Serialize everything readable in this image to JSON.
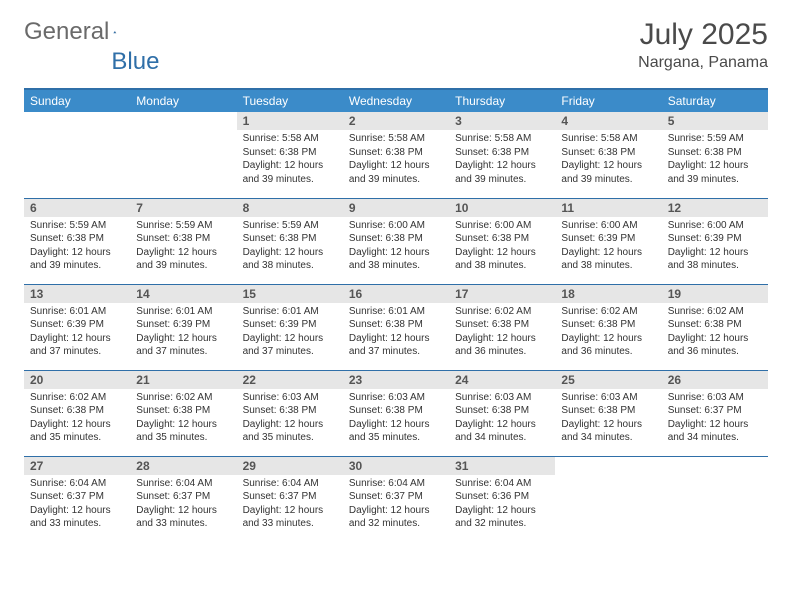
{
  "logo": {
    "text_gray": "General",
    "text_blue": "Blue"
  },
  "title": "July 2025",
  "location": "Nargana, Panama",
  "colors": {
    "header_bg": "#3b8bc9",
    "border": "#2f6fa8",
    "daynum_bg": "#e6e6e6",
    "text": "#333333",
    "title": "#4a4a4a"
  },
  "day_headers": [
    "Sunday",
    "Monday",
    "Tuesday",
    "Wednesday",
    "Thursday",
    "Friday",
    "Saturday"
  ],
  "weeks": [
    [
      {
        "empty": true
      },
      {
        "empty": true
      },
      {
        "day": "1",
        "sunrise": "Sunrise: 5:58 AM",
        "sunset": "Sunset: 6:38 PM",
        "daylight": "Daylight: 12 hours and 39 minutes."
      },
      {
        "day": "2",
        "sunrise": "Sunrise: 5:58 AM",
        "sunset": "Sunset: 6:38 PM",
        "daylight": "Daylight: 12 hours and 39 minutes."
      },
      {
        "day": "3",
        "sunrise": "Sunrise: 5:58 AM",
        "sunset": "Sunset: 6:38 PM",
        "daylight": "Daylight: 12 hours and 39 minutes."
      },
      {
        "day": "4",
        "sunrise": "Sunrise: 5:58 AM",
        "sunset": "Sunset: 6:38 PM",
        "daylight": "Daylight: 12 hours and 39 minutes."
      },
      {
        "day": "5",
        "sunrise": "Sunrise: 5:59 AM",
        "sunset": "Sunset: 6:38 PM",
        "daylight": "Daylight: 12 hours and 39 minutes."
      }
    ],
    [
      {
        "day": "6",
        "sunrise": "Sunrise: 5:59 AM",
        "sunset": "Sunset: 6:38 PM",
        "daylight": "Daylight: 12 hours and 39 minutes."
      },
      {
        "day": "7",
        "sunrise": "Sunrise: 5:59 AM",
        "sunset": "Sunset: 6:38 PM",
        "daylight": "Daylight: 12 hours and 39 minutes."
      },
      {
        "day": "8",
        "sunrise": "Sunrise: 5:59 AM",
        "sunset": "Sunset: 6:38 PM",
        "daylight": "Daylight: 12 hours and 38 minutes."
      },
      {
        "day": "9",
        "sunrise": "Sunrise: 6:00 AM",
        "sunset": "Sunset: 6:38 PM",
        "daylight": "Daylight: 12 hours and 38 minutes."
      },
      {
        "day": "10",
        "sunrise": "Sunrise: 6:00 AM",
        "sunset": "Sunset: 6:38 PM",
        "daylight": "Daylight: 12 hours and 38 minutes."
      },
      {
        "day": "11",
        "sunrise": "Sunrise: 6:00 AM",
        "sunset": "Sunset: 6:39 PM",
        "daylight": "Daylight: 12 hours and 38 minutes."
      },
      {
        "day": "12",
        "sunrise": "Sunrise: 6:00 AM",
        "sunset": "Sunset: 6:39 PM",
        "daylight": "Daylight: 12 hours and 38 minutes."
      }
    ],
    [
      {
        "day": "13",
        "sunrise": "Sunrise: 6:01 AM",
        "sunset": "Sunset: 6:39 PM",
        "daylight": "Daylight: 12 hours and 37 minutes."
      },
      {
        "day": "14",
        "sunrise": "Sunrise: 6:01 AM",
        "sunset": "Sunset: 6:39 PM",
        "daylight": "Daylight: 12 hours and 37 minutes."
      },
      {
        "day": "15",
        "sunrise": "Sunrise: 6:01 AM",
        "sunset": "Sunset: 6:39 PM",
        "daylight": "Daylight: 12 hours and 37 minutes."
      },
      {
        "day": "16",
        "sunrise": "Sunrise: 6:01 AM",
        "sunset": "Sunset: 6:38 PM",
        "daylight": "Daylight: 12 hours and 37 minutes."
      },
      {
        "day": "17",
        "sunrise": "Sunrise: 6:02 AM",
        "sunset": "Sunset: 6:38 PM",
        "daylight": "Daylight: 12 hours and 36 minutes."
      },
      {
        "day": "18",
        "sunrise": "Sunrise: 6:02 AM",
        "sunset": "Sunset: 6:38 PM",
        "daylight": "Daylight: 12 hours and 36 minutes."
      },
      {
        "day": "19",
        "sunrise": "Sunrise: 6:02 AM",
        "sunset": "Sunset: 6:38 PM",
        "daylight": "Daylight: 12 hours and 36 minutes."
      }
    ],
    [
      {
        "day": "20",
        "sunrise": "Sunrise: 6:02 AM",
        "sunset": "Sunset: 6:38 PM",
        "daylight": "Daylight: 12 hours and 35 minutes."
      },
      {
        "day": "21",
        "sunrise": "Sunrise: 6:02 AM",
        "sunset": "Sunset: 6:38 PM",
        "daylight": "Daylight: 12 hours and 35 minutes."
      },
      {
        "day": "22",
        "sunrise": "Sunrise: 6:03 AM",
        "sunset": "Sunset: 6:38 PM",
        "daylight": "Daylight: 12 hours and 35 minutes."
      },
      {
        "day": "23",
        "sunrise": "Sunrise: 6:03 AM",
        "sunset": "Sunset: 6:38 PM",
        "daylight": "Daylight: 12 hours and 35 minutes."
      },
      {
        "day": "24",
        "sunrise": "Sunrise: 6:03 AM",
        "sunset": "Sunset: 6:38 PM",
        "daylight": "Daylight: 12 hours and 34 minutes."
      },
      {
        "day": "25",
        "sunrise": "Sunrise: 6:03 AM",
        "sunset": "Sunset: 6:38 PM",
        "daylight": "Daylight: 12 hours and 34 minutes."
      },
      {
        "day": "26",
        "sunrise": "Sunrise: 6:03 AM",
        "sunset": "Sunset: 6:37 PM",
        "daylight": "Daylight: 12 hours and 34 minutes."
      }
    ],
    [
      {
        "day": "27",
        "sunrise": "Sunrise: 6:04 AM",
        "sunset": "Sunset: 6:37 PM",
        "daylight": "Daylight: 12 hours and 33 minutes."
      },
      {
        "day": "28",
        "sunrise": "Sunrise: 6:04 AM",
        "sunset": "Sunset: 6:37 PM",
        "daylight": "Daylight: 12 hours and 33 minutes."
      },
      {
        "day": "29",
        "sunrise": "Sunrise: 6:04 AM",
        "sunset": "Sunset: 6:37 PM",
        "daylight": "Daylight: 12 hours and 33 minutes."
      },
      {
        "day": "30",
        "sunrise": "Sunrise: 6:04 AM",
        "sunset": "Sunset: 6:37 PM",
        "daylight": "Daylight: 12 hours and 32 minutes."
      },
      {
        "day": "31",
        "sunrise": "Sunrise: 6:04 AM",
        "sunset": "Sunset: 6:36 PM",
        "daylight": "Daylight: 12 hours and 32 minutes."
      },
      {
        "empty": true
      },
      {
        "empty": true
      }
    ]
  ]
}
